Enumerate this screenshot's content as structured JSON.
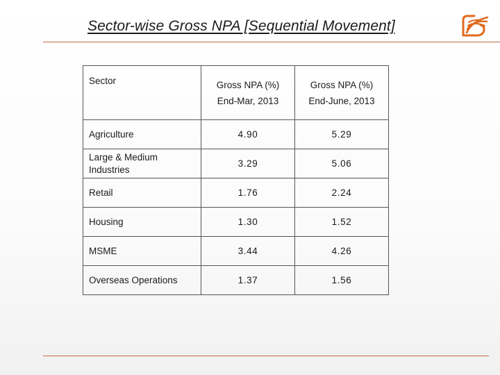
{
  "slide": {
    "title": "Sector-wise Gross NPA [Sequential Movement]",
    "brand_color": "#e06a1d",
    "rule_color": "#c26a4b",
    "logo_icon": "bank-of-baroda-logo"
  },
  "table": {
    "headers": {
      "sector": "Sector",
      "col1_line1": "Gross NPA (%)",
      "col1_line2": "End-Mar, 2013",
      "col2_line1": "Gross NPA (%)",
      "col2_line2": "End-June, 2013"
    },
    "rows": [
      {
        "sector": "Agriculture",
        "mar_2013": "4.90",
        "jun_2013": "5.29"
      },
      {
        "sector": "Large & Medium Industries",
        "mar_2013": "3.29",
        "jun_2013": "5.06"
      },
      {
        "sector": "Retail",
        "mar_2013": "1.76",
        "jun_2013": "2.24"
      },
      {
        "sector": "Housing",
        "mar_2013": "1.30",
        "jun_2013": "1.52"
      },
      {
        "sector": "MSME",
        "mar_2013": "3.44",
        "jun_2013": "4.26"
      },
      {
        "sector": "Overseas Operations",
        "mar_2013": "1.37",
        "jun_2013": "1.56"
      }
    ]
  }
}
